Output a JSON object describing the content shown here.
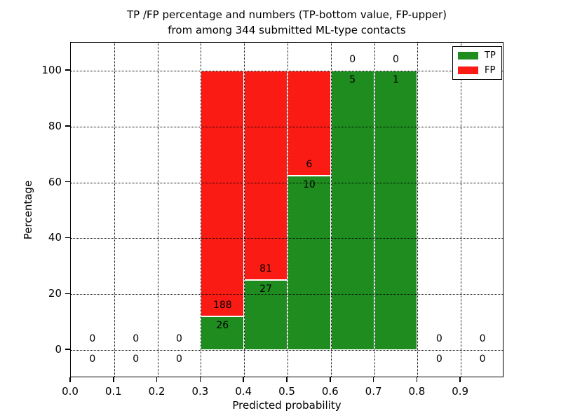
{
  "chart_data": {
    "type": "bar",
    "stacked": true,
    "title_line1": "TP /FP percentage and numbers (TP-bottom value, FP-upper)",
    "title_line2": "from among 344 submitted ML-type contacts",
    "total_contacts": 344,
    "xlabel": "Predicted probability",
    "ylabel": "Percentage",
    "xlim": [
      0.0,
      1.0
    ],
    "ylim": [
      -10,
      110
    ],
    "grid": true,
    "grid_style": "dotted",
    "x_ticks": [
      {
        "value": 0.0,
        "label": "0.0"
      },
      {
        "value": 0.1,
        "label": "0.1"
      },
      {
        "value": 0.2,
        "label": "0.2"
      },
      {
        "value": 0.3,
        "label": "0.3"
      },
      {
        "value": 0.4,
        "label": "0.4"
      },
      {
        "value": 0.5,
        "label": "0.5"
      },
      {
        "value": 0.6,
        "label": "0.6"
      },
      {
        "value": 0.7,
        "label": "0.7"
      },
      {
        "value": 0.8,
        "label": "0.8"
      },
      {
        "value": 0.9,
        "label": "0.9"
      }
    ],
    "y_ticks": [
      {
        "value": 0,
        "label": "0"
      },
      {
        "value": 20,
        "label": "20"
      },
      {
        "value": 40,
        "label": "40"
      },
      {
        "value": 60,
        "label": "60"
      },
      {
        "value": 80,
        "label": "80"
      },
      {
        "value": 100,
        "label": "100"
      }
    ],
    "bin_width": 0.1,
    "bins": [
      {
        "start": 0.0,
        "tp": 0,
        "fp": 0
      },
      {
        "start": 0.1,
        "tp": 0,
        "fp": 0
      },
      {
        "start": 0.2,
        "tp": 0,
        "fp": 0
      },
      {
        "start": 0.3,
        "tp": 26,
        "fp": 188
      },
      {
        "start": 0.4,
        "tp": 27,
        "fp": 81
      },
      {
        "start": 0.5,
        "tp": 10,
        "fp": 6
      },
      {
        "start": 0.6,
        "tp": 5,
        "fp": 0
      },
      {
        "start": 0.7,
        "tp": 1,
        "fp": 0
      },
      {
        "start": 0.8,
        "tp": 0,
        "fp": 0
      },
      {
        "start": 0.9,
        "tp": 0,
        "fp": 0
      }
    ],
    "legend_position": "upper right",
    "legend": [
      {
        "label": "TP",
        "color": "#1e8c1e"
      },
      {
        "label": "FP",
        "color": "#fb1b15"
      }
    ]
  },
  "colors": {
    "tp": "#1e8c1e",
    "fp": "#fb1b15",
    "bar_edge": "#ffffff",
    "grid": "#000000",
    "background": "#ffffff",
    "text": "#000000"
  }
}
